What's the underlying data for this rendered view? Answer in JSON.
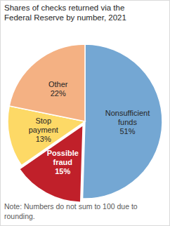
{
  "chart_data": {
    "type": "pie",
    "title": "Shares of checks returned via the Federal Reserve by number, 2021",
    "categories": [
      "Nonsufficient funds",
      "Possible fraud",
      "Stop payment",
      "Other"
    ],
    "values": [
      51,
      15,
      13,
      22
    ],
    "value_labels": [
      "51%",
      "15%",
      "13%",
      "22%"
    ],
    "colors": [
      "#74a7d3",
      "#c0202a",
      "#fdd966",
      "#f4b183"
    ],
    "data_labels": true,
    "annotations": [
      "Note: Numbers do not sum to 100 due to rounding."
    ]
  }
}
